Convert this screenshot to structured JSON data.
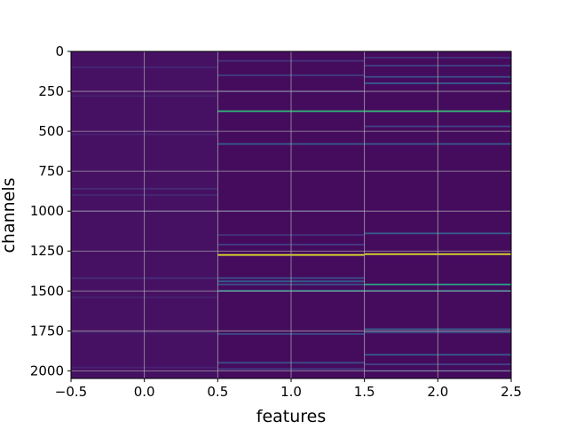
{
  "chart_data": {
    "type": "heatmap",
    "title": "",
    "xlabel": "features",
    "ylabel": "channels",
    "xlim": [
      -0.5,
      2.5
    ],
    "ylim": [
      2048,
      0
    ],
    "y_inverted": true,
    "grid": true,
    "colormap": "viridis",
    "x_ticks": [
      -0.5,
      0.0,
      0.5,
      1.0,
      1.5,
      2.0,
      2.5
    ],
    "x_tick_labels": [
      "−0.5",
      "0.0",
      "0.5",
      "1.0",
      "1.5",
      "2.0",
      "2.5"
    ],
    "y_ticks": [
      0,
      250,
      500,
      750,
      1000,
      1250,
      1500,
      1750,
      2000
    ],
    "y_tick_labels": [
      "0",
      "250",
      "500",
      "750",
      "1000",
      "1250",
      "1500",
      "1750",
      "2000"
    ],
    "columns": [
      {
        "feature": 0,
        "base_value": 0.06,
        "bands": [
          {
            "channel": 100,
            "value": 0.14
          },
          {
            "channel": 280,
            "value": 0.12
          },
          {
            "channel": 520,
            "value": 0.12
          },
          {
            "channel": 860,
            "value": 0.16
          },
          {
            "channel": 900,
            "value": 0.14
          },
          {
            "channel": 1000,
            "value": 0.12
          },
          {
            "channel": 1420,
            "value": 0.16
          },
          {
            "channel": 1540,
            "value": 0.12
          },
          {
            "channel": 1760,
            "value": 0.12
          },
          {
            "channel": 1980,
            "value": 0.12
          }
        ]
      },
      {
        "feature": 1,
        "base_value": 0.04,
        "bands": [
          {
            "channel": 60,
            "value": 0.18
          },
          {
            "channel": 150,
            "value": 0.22
          },
          {
            "channel": 250,
            "value": 0.16
          },
          {
            "channel": 375,
            "value": 0.62
          },
          {
            "channel": 580,
            "value": 0.36
          },
          {
            "channel": 1000,
            "value": 0.15
          },
          {
            "channel": 1150,
            "value": 0.18
          },
          {
            "channel": 1210,
            "value": 0.22
          },
          {
            "channel": 1275,
            "value": 0.95
          },
          {
            "channel": 1420,
            "value": 0.3
          },
          {
            "channel": 1440,
            "value": 0.38
          },
          {
            "channel": 1460,
            "value": 0.3
          },
          {
            "channel": 1500,
            "value": 0.48
          },
          {
            "channel": 1770,
            "value": 0.3
          },
          {
            "channel": 1950,
            "value": 0.3
          },
          {
            "channel": 1990,
            "value": 0.22
          }
        ]
      },
      {
        "feature": 2,
        "base_value": 0.04,
        "bands": [
          {
            "channel": 40,
            "value": 0.18
          },
          {
            "channel": 90,
            "value": 0.24
          },
          {
            "channel": 160,
            "value": 0.3
          },
          {
            "channel": 200,
            "value": 0.36
          },
          {
            "channel": 375,
            "value": 0.64
          },
          {
            "channel": 470,
            "value": 0.24
          },
          {
            "channel": 580,
            "value": 0.34
          },
          {
            "channel": 1140,
            "value": 0.36
          },
          {
            "channel": 1270,
            "value": 0.95
          },
          {
            "channel": 1460,
            "value": 0.55
          },
          {
            "channel": 1500,
            "value": 0.45
          },
          {
            "channel": 1740,
            "value": 0.36
          },
          {
            "channel": 1760,
            "value": 0.3
          },
          {
            "channel": 1900,
            "value": 0.36
          },
          {
            "channel": 1960,
            "value": 0.24
          },
          {
            "channel": 2000,
            "value": 0.18
          }
        ]
      }
    ]
  }
}
